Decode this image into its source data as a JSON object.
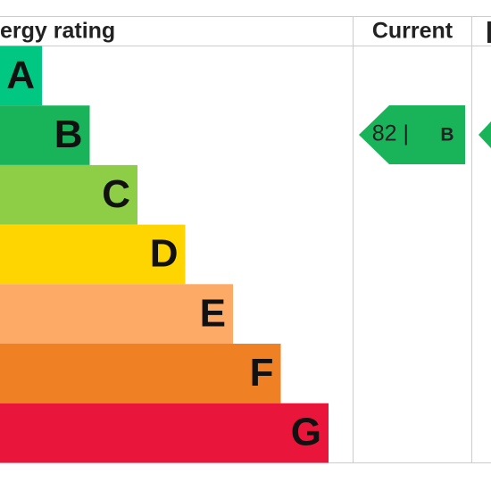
{
  "header": {
    "title": "ergy rating",
    "current": "Current"
  },
  "bands": [
    {
      "letter": "A",
      "color": "#00c781"
    },
    {
      "letter": "B",
      "color": "#19b459"
    },
    {
      "letter": "C",
      "color": "#8dce46"
    },
    {
      "letter": "D",
      "color": "#ffd500"
    },
    {
      "letter": "E",
      "color": "#fcaa65"
    },
    {
      "letter": "F",
      "color": "#ef8023"
    },
    {
      "letter": "G",
      "color": "#e9153b"
    }
  ],
  "current": {
    "score": "82 |",
    "band": "B"
  }
}
